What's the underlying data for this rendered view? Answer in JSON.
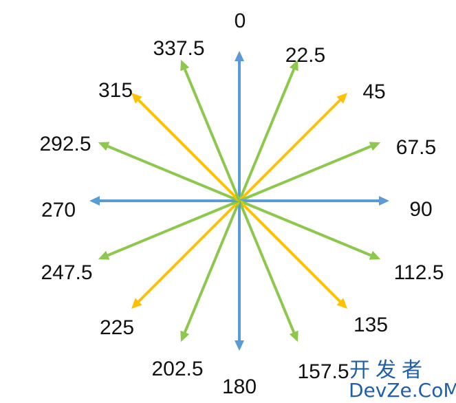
{
  "directions": [
    {
      "angle": 0,
      "label": "0",
      "color": "#5b9bd5"
    },
    {
      "angle": 22.5,
      "label": "22.5",
      "color": "#8cc84b"
    },
    {
      "angle": 45,
      "label": "45",
      "color": "#ffc000"
    },
    {
      "angle": 67.5,
      "label": "67.5",
      "color": "#8cc84b"
    },
    {
      "angle": 90,
      "label": "90",
      "color": "#5b9bd5"
    },
    {
      "angle": 112.5,
      "label": "112.5",
      "color": "#8cc84b"
    },
    {
      "angle": 135,
      "label": "135",
      "color": "#ffc000"
    },
    {
      "angle": 157.5,
      "label": "157.5",
      "color": "#8cc84b"
    },
    {
      "angle": 180,
      "label": "180",
      "color": "#5b9bd5"
    },
    {
      "angle": 202.5,
      "label": "202.5",
      "color": "#8cc84b"
    },
    {
      "angle": 225,
      "label": "225",
      "color": "#ffc000"
    },
    {
      "angle": 247.5,
      "label": "247.5",
      "color": "#8cc84b"
    },
    {
      "angle": 270,
      "label": "270",
      "color": "#5b9bd5"
    },
    {
      "angle": 292.5,
      "label": "292.5",
      "color": "#8cc84b"
    },
    {
      "angle": 315,
      "label": "315",
      "color": "#ffc000"
    },
    {
      "angle": 337.5,
      "label": "337.5",
      "color": "#8cc84b"
    }
  ],
  "watermark": {
    "chinese": "开发者",
    "latin": "DevZe.CoM",
    "color": "#1f5fa8"
  }
}
